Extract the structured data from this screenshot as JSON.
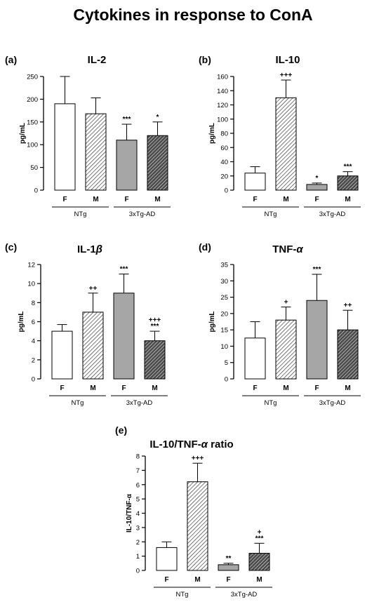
{
  "figure": {
    "title": "Cytokines in response to ConA"
  },
  "chart_data": [
    {
      "type": "bar",
      "panel_label": "(a)",
      "title": "IL-2",
      "ylabel": "pg/mL",
      "xlabel": "",
      "ylim": [
        0,
        250
      ],
      "yticks": [
        0,
        50,
        100,
        150,
        200,
        250
      ],
      "categories": [
        "F",
        "M",
        "F",
        "M"
      ],
      "groups": [
        {
          "label": "NTg",
          "members": [
            0,
            1
          ]
        },
        {
          "label": "3xTg-AD",
          "members": [
            2,
            3
          ]
        }
      ],
      "values": [
        190,
        168,
        110,
        120
      ],
      "errors": [
        60,
        35,
        35,
        30
      ],
      "fills": [
        "open",
        "hatch-light",
        "solid-gray",
        "hatch-dark"
      ],
      "annotations": [
        [],
        [],
        [
          "***"
        ],
        [
          "*"
        ]
      ],
      "grid": false
    },
    {
      "type": "bar",
      "panel_label": "(b)",
      "title": "IL-10",
      "ylabel": "pg/mL",
      "xlabel": "",
      "ylim": [
        0,
        160
      ],
      "yticks": [
        0,
        20,
        40,
        60,
        80,
        100,
        120,
        140,
        160
      ],
      "categories": [
        "F",
        "M",
        "F",
        "M"
      ],
      "groups": [
        {
          "label": "NTg",
          "members": [
            0,
            1
          ]
        },
        {
          "label": "3xTg-AD",
          "members": [
            2,
            3
          ]
        }
      ],
      "values": [
        24,
        130,
        8,
        20
      ],
      "errors": [
        9,
        25,
        2,
        6
      ],
      "fills": [
        "open",
        "hatch-light",
        "solid-gray",
        "hatch-dark"
      ],
      "annotations": [
        [],
        [
          "+++"
        ],
        [
          "*"
        ],
        [
          "***"
        ]
      ],
      "grid": false
    },
    {
      "type": "bar",
      "panel_label": "(c)",
      "title_main": "IL-1",
      "title_greek": "β",
      "ylabel": "pg/mL",
      "xlabel": "",
      "ylim": [
        0,
        12
      ],
      "yticks": [
        0,
        2,
        4,
        6,
        8,
        10,
        12
      ],
      "categories": [
        "F",
        "M",
        "F",
        "M"
      ],
      "groups": [
        {
          "label": "NTg",
          "members": [
            0,
            1
          ]
        },
        {
          "label": "3xTg-AD",
          "members": [
            2,
            3
          ]
        }
      ],
      "values": [
        5,
        7,
        9,
        4
      ],
      "errors": [
        0.7,
        2,
        2,
        1
      ],
      "fills": [
        "open",
        "hatch-light",
        "solid-gray",
        "hatch-dark"
      ],
      "annotations": [
        [],
        [
          "++"
        ],
        [
          "***"
        ],
        [
          "+++",
          "***"
        ]
      ],
      "grid": false
    },
    {
      "type": "bar",
      "panel_label": "(d)",
      "title_main": "TNF-",
      "title_greek": "α",
      "ylabel": "pg/mL",
      "xlabel": "",
      "ylim": [
        0,
        35
      ],
      "yticks": [
        0,
        5,
        10,
        15,
        20,
        25,
        30,
        35
      ],
      "categories": [
        "F",
        "M",
        "F",
        "M"
      ],
      "groups": [
        {
          "label": "NTg",
          "members": [
            0,
            1
          ]
        },
        {
          "label": "3xTg-AD",
          "members": [
            2,
            3
          ]
        }
      ],
      "values": [
        12.5,
        18,
        24,
        15
      ],
      "errors": [
        5,
        4,
        8,
        6
      ],
      "fills": [
        "open",
        "hatch-light",
        "solid-gray",
        "hatch-dark"
      ],
      "annotations": [
        [],
        [
          "+"
        ],
        [
          "***"
        ],
        [
          "++"
        ]
      ],
      "grid": false
    },
    {
      "type": "bar",
      "panel_label": "(e)",
      "title_main": "IL-10/TNF-",
      "title_greek": "α",
      "title_suffix": " ratio",
      "ylabel": "IL-10/TNF-α",
      "xlabel": "",
      "ylim": [
        0,
        8
      ],
      "yticks": [
        0,
        1,
        2,
        3,
        4,
        5,
        6,
        7,
        8
      ],
      "categories": [
        "F",
        "M",
        "F",
        "M"
      ],
      "groups": [
        {
          "label": "NTg",
          "members": [
            0,
            1
          ]
        },
        {
          "label": "3xTg-AD",
          "members": [
            2,
            3
          ]
        }
      ],
      "values": [
        1.6,
        6.2,
        0.4,
        1.2
      ],
      "errors": [
        0.4,
        1.3,
        0.1,
        0.7
      ],
      "fills": [
        "open",
        "hatch-light",
        "solid-gray",
        "hatch-dark"
      ],
      "annotations": [
        [],
        [
          "+++"
        ],
        [
          "**"
        ],
        [
          "+",
          "***"
        ]
      ],
      "grid": false
    }
  ],
  "colors": {
    "solid_gray": "#a6a6a6",
    "hatch_dark_bg": "#4d4d4d",
    "hatch_light_bg": "#ffffff"
  }
}
